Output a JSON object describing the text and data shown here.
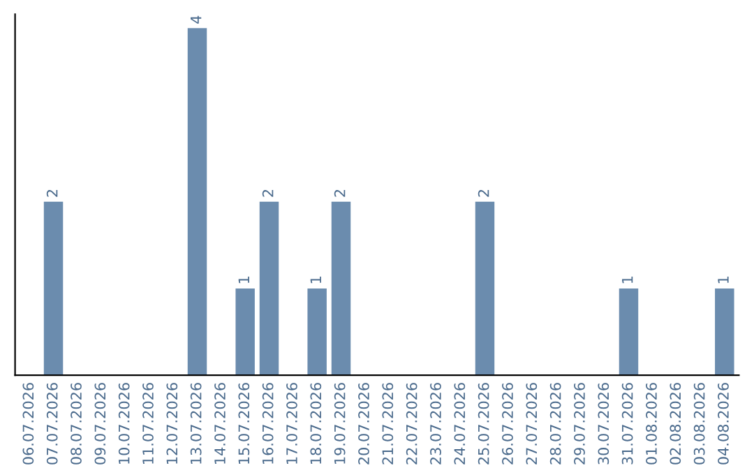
{
  "chart_data": {
    "type": "bar",
    "categories": [
      "06.07.2026",
      "07.07.2026",
      "08.07.2026",
      "09.07.2026",
      "10.07.2026",
      "11.07.2026",
      "12.07.2026",
      "13.07.2026",
      "14.07.2026",
      "15.07.2026",
      "16.07.2026",
      "17.07.2026",
      "18.07.2026",
      "19.07.2026",
      "20.07.2026",
      "21.07.2026",
      "22.07.2026",
      "23.07.2026",
      "24.07.2026",
      "25.07.2026",
      "26.07.2026",
      "27.07.2026",
      "28.07.2026",
      "29.07.2026",
      "30.07.2026",
      "31.07.2026",
      "01.08.2026",
      "02.08.2026",
      "03.08.2026",
      "04.08.2026"
    ],
    "values": [
      0,
      2,
      0,
      0,
      0,
      0,
      0,
      4,
      0,
      1,
      2,
      0,
      1,
      2,
      0,
      0,
      0,
      0,
      0,
      2,
      0,
      0,
      0,
      0,
      0,
      1,
      0,
      0,
      0,
      1
    ],
    "value_labels": [
      null,
      "2",
      null,
      null,
      null,
      null,
      null,
      "4",
      null,
      "1",
      "2",
      null,
      "1",
      "2",
      null,
      null,
      null,
      null,
      null,
      "2",
      null,
      null,
      null,
      null,
      null,
      "1",
      null,
      null,
      null,
      "1"
    ],
    "color": "#6b8cae",
    "tick_labels": "x",
    "grid": false,
    "legend": false
  }
}
